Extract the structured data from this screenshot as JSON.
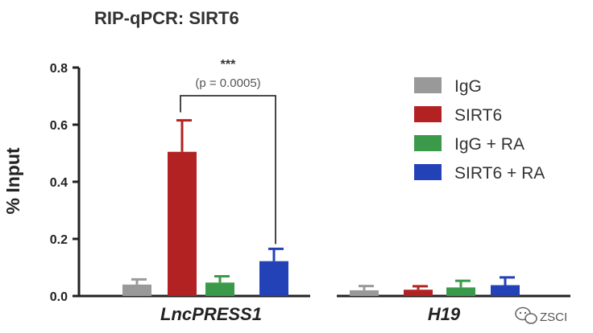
{
  "chart_data": {
    "type": "bar",
    "title": "RIP-qPCR: SIRT6",
    "ylabel": "% Input",
    "ylim": [
      0,
      0.8
    ],
    "yticks": [
      0.0,
      0.2,
      0.4,
      0.6,
      0.8
    ],
    "ytick_labels": [
      "0.0",
      "0.2",
      "0.4",
      "0.6",
      "0.8"
    ],
    "categories": [
      "LncPRESS1",
      "H19"
    ],
    "series": [
      {
        "name": "IgG",
        "color": "#999999",
        "values": [
          0.04,
          0.02
        ],
        "errors": [
          0.018,
          0.015
        ]
      },
      {
        "name": "SIRT6",
        "color": "#b22222",
        "values": [
          0.505,
          0.022
        ],
        "errors": [
          0.11,
          0.012
        ]
      },
      {
        "name": "IgG + RA",
        "color": "#3a9a4a",
        "values": [
          0.047,
          0.03
        ],
        "errors": [
          0.022,
          0.023
        ]
      },
      {
        "name": "SIRT6 + RA",
        "color": "#2442b8",
        "values": [
          0.122,
          0.038
        ],
        "errors": [
          0.043,
          0.027
        ]
      }
    ],
    "legend_position": "right",
    "grid": false,
    "annotation": {
      "stars": "***",
      "p_text": "(p = 0.0005)",
      "between_series": [
        "SIRT6",
        "SIRT6 + RA"
      ],
      "category": "LncPRESS1"
    }
  },
  "watermark": {
    "text": "ZSCI",
    "icon": "wechat-logo-icon"
  }
}
